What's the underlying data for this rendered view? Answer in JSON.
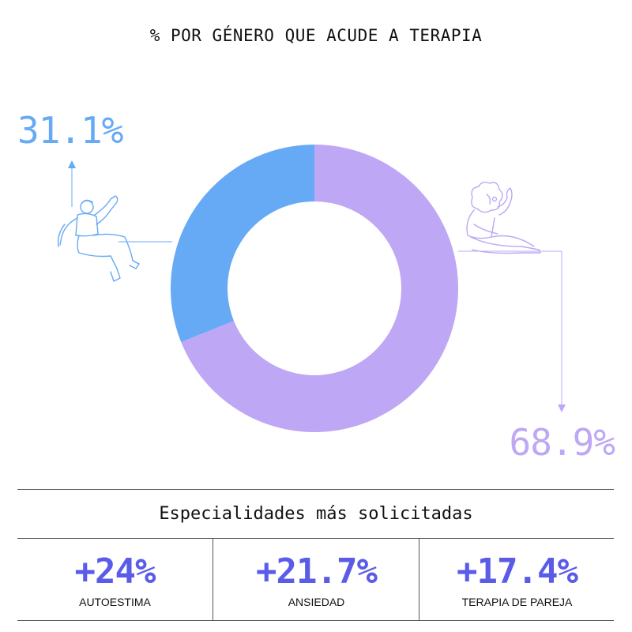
{
  "colors": {
    "men": "#66aaf5",
    "women": "#bea7f5",
    "stat_accent": "#5a5ce8",
    "text": "#111111"
  },
  "chart_data": {
    "type": "pie",
    "title": "% POR GÉNERO QUE ACUDE A TERAPIA",
    "donut": true,
    "slices": [
      {
        "label": "31.1%",
        "value": 31.1,
        "color": "#66aaf5",
        "icon": "man-figure-icon"
      },
      {
        "label": "68.9%",
        "value": 68.9,
        "color": "#bea7f5",
        "icon": "woman-figure-icon"
      }
    ]
  },
  "specialties": {
    "heading": "Especialidades más solicitadas",
    "items": [
      {
        "value": "+24%",
        "label": "AUTOESTIMA"
      },
      {
        "value": "+21.7%",
        "label": "ANSIEDAD"
      },
      {
        "value": "+17.4%",
        "label": "TERAPIA DE PAREJA"
      }
    ]
  }
}
